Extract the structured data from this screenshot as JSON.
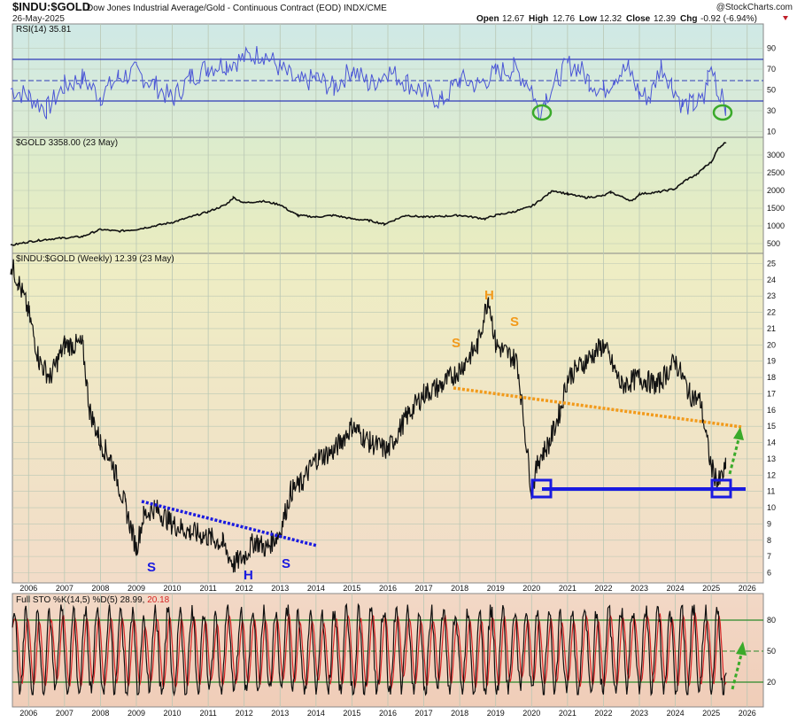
{
  "header": {
    "symbol": "$INDU:$GOLD",
    "description": "Dow Jones Industrial Average/Gold - Continuous Contract (EOD) INDX/CME",
    "date": "26-May-2025",
    "watermark": "@StockCharts.com",
    "open_label": "Open",
    "open_value": "12.67",
    "high_label": "High",
    "high_value": "12.76",
    "low_label": "Low",
    "low_value": "12.32",
    "close_label": "Close",
    "close_value": "12.39",
    "chg_label": "Chg",
    "chg_value": "-0.92 (-6.94%)"
  },
  "panels": {
    "rsi_label": "RSI(14) 35.81",
    "gold_label": "$GOLD 3358.00 (23 May)",
    "main_label": "$INDU:$GOLD (Weekly) 12.39 (23 May)",
    "sto_label_prefix": "Full STO %K(14,5) %D(5) 28.99,",
    "sto_label_d": "20.18"
  },
  "colors": {
    "rsi_bg_top": "#cfe9e6",
    "rsi_bg_bottom": "#dcebd2",
    "gold_bg_top": "#dceccd",
    "gold_bg_bottom": "#e9ecc0",
    "main_bg_top": "#eeeec4",
    "main_bg_bottom": "#f2dcc8",
    "sto_bg_top": "#f2d8c6",
    "sto_bg_bottom": "#f0cdb8",
    "grid": "#b9c7b4",
    "rsi_line": "#4a55d6",
    "rsi_guides": "#2f3ab8",
    "price_line": "#111111",
    "sto_k": "#111111",
    "sto_d": "#d62424",
    "sto_guides": "#2a8a2a",
    "blue_annot": "#1a1ae0",
    "orange_annot": "#f29a1b",
    "green_annot": "#3aaa2a",
    "chg_color": "#c0202a"
  },
  "chart_data": [
    {
      "type": "line",
      "title": "RSI(14) 35.81",
      "ylim": [
        0,
        100
      ],
      "yticks": [
        "90",
        "70",
        "50",
        "30",
        "10"
      ],
      "reference_lines": [
        70,
        50,
        30
      ],
      "series": [
        {
          "values": [
            51,
            44,
            31,
            54,
            61,
            44,
            62,
            67,
            55,
            41,
            62,
            72,
            75,
            86,
            71,
            56,
            61,
            52,
            70,
            55,
            68,
            58,
            48,
            39,
            60,
            55,
            66,
            71,
            53,
            26,
            44,
            60,
            74,
            72,
            59,
            49,
            63,
            71,
            46,
            43,
            74,
            56,
            35,
            36,
            39,
            62,
            70,
            64,
            44,
            51,
            36
          ]
        }
      ],
      "x": [
        2005.5,
        2006,
        2006.5,
        2007,
        2007.5,
        2008,
        2008.5,
        2009,
        2009.5,
        2010,
        2010.5,
        2011,
        2011.5,
        2012.5,
        2013,
        2013.5,
        2014,
        2014.5,
        2015,
        2015.5,
        2016,
        2016.5,
        2017,
        2017.5,
        2018,
        2018.5,
        2019,
        2019.5,
        2020,
        2020.2,
        2020.4,
        2020.7,
        2021,
        2021.3,
        2021.6,
        2022,
        2022.3,
        2022.7,
        2023,
        2023.3,
        2023.6,
        2023.9,
        2024.2,
        2024.5,
        2024.8,
        2024.9,
        2025,
        2025.1,
        2025.2,
        2025.3,
        2025.4
      ]
    },
    {
      "type": "line",
      "title": "$GOLD 3358.00 (23 May)",
      "yticks": [
        "3000",
        "2500",
        "2000",
        "1500",
        "1000",
        "500"
      ],
      "ylim": [
        300,
        3500
      ],
      "x": [
        2005.5,
        2006,
        2006.5,
        2007,
        2007.5,
        2008,
        2008.5,
        2009,
        2009.5,
        2010,
        2010.5,
        2011,
        2011.5,
        2011.7,
        2012,
        2012.5,
        2013,
        2013.3,
        2013.5,
        2014,
        2014.5,
        2015,
        2015.5,
        2015.9,
        2016.5,
        2017,
        2017.5,
        2018,
        2018.7,
        2019,
        2019.5,
        2020,
        2020.6,
        2021,
        2021.5,
        2022,
        2022.2,
        2022.8,
        2023,
        2023.5,
        2024,
        2024.3,
        2024.6,
        2024.8,
        2025,
        2025.2,
        2025.4
      ],
      "series": [
        {
          "name": "$GOLD",
          "values": [
            450,
            550,
            620,
            660,
            700,
            900,
            850,
            900,
            1000,
            1100,
            1250,
            1400,
            1600,
            1800,
            1650,
            1700,
            1600,
            1400,
            1300,
            1250,
            1300,
            1200,
            1150,
            1050,
            1300,
            1250,
            1270,
            1300,
            1200,
            1300,
            1400,
            1550,
            2000,
            1900,
            1800,
            1850,
            1950,
            1700,
            1900,
            1950,
            2050,
            2300,
            2450,
            2650,
            2800,
            3200,
            3358
          ]
        }
      ]
    },
    {
      "type": "line",
      "title": "$INDU:$GOLD (Weekly) 12.39 (23 May)",
      "ylim": [
        5.5,
        26
      ],
      "yticks": [
        "25",
        "24",
        "23",
        "22",
        "21",
        "20",
        "19",
        "18",
        "17",
        "16",
        "15",
        "14",
        "13",
        "12",
        "11",
        "10",
        "9",
        "8",
        "7",
        "6"
      ],
      "x_ticks": [
        "2006",
        "2007",
        "2008",
        "2009",
        "2010",
        "2011",
        "2012",
        "2013",
        "2014",
        "2015",
        "2016",
        "2017",
        "2018",
        "2019",
        "2020",
        "2021",
        "2022",
        "2023",
        "2024",
        "2025",
        "2026"
      ],
      "x": [
        2005.5,
        2005.7,
        2006,
        2006.3,
        2006.6,
        2007,
        2007.5,
        2007.7,
        2008,
        2008.3,
        2008.7,
        2009,
        2009.2,
        2009.5,
        2010,
        2010.5,
        2011,
        2011.4,
        2011.7,
        2012,
        2012.3,
        2012.6,
        2013,
        2013.3,
        2013.6,
        2014,
        2014.5,
        2015,
        2015.5,
        2016,
        2016.5,
        2017,
        2017.5,
        2018,
        2018.5,
        2018.8,
        2019,
        2019.3,
        2019.6,
        2020,
        2020.2,
        2020.5,
        2020.8,
        2021,
        2021.5,
        2022,
        2022.5,
        2023,
        2023.5,
        2024,
        2024.4,
        2024.7,
        2025,
        2025.2,
        2025.4
      ],
      "series": [
        {
          "name": "$INDU:$GOLD",
          "values": [
            25,
            24,
            22,
            19,
            18,
            20,
            20,
            16,
            14,
            13,
            10,
            7.5,
            9.5,
            10,
            9,
            8.5,
            8.2,
            7.8,
            6.5,
            7,
            8,
            7.5,
            8.5,
            11,
            11.5,
            13,
            13.5,
            15,
            14,
            13.5,
            15.5,
            17,
            17.5,
            18.5,
            20,
            23,
            20,
            19.5,
            19,
            11,
            13,
            14,
            16,
            18,
            19,
            20,
            17.5,
            18,
            17.5,
            19,
            17,
            16.5,
            12.5,
            11.5,
            12.39
          ]
        }
      ],
      "annotations": [
        "S",
        "H",
        "S",
        "S",
        "H",
        "S"
      ]
    },
    {
      "type": "line",
      "title": "Full STO %K(14,5) %D(5) 28.99, 20.18",
      "ylim": [
        0,
        100
      ],
      "yticks": [
        "80",
        "50",
        "20"
      ],
      "reference_lines": [
        80,
        50,
        20
      ],
      "series": [
        {
          "name": "%K",
          "values": [
            28.99
          ]
        },
        {
          "name": "%D",
          "values": [
            20.18
          ]
        }
      ]
    }
  ]
}
